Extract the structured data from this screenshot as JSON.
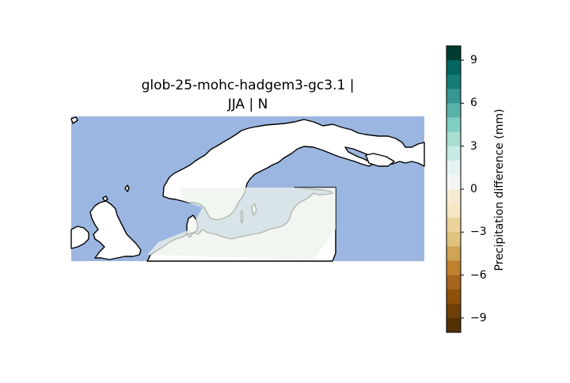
{
  "map": {
    "title_line1": "glob-25-mohc-hadgem3-gc3.1 |",
    "title_line2": "JJA | N",
    "region": "Northern Europe / Scandinavia",
    "ocean_color": "#9bb6e0",
    "land_color": "#ffffff",
    "coastline_color": "#000000",
    "field_overlay_color": "#eef3ec"
  },
  "colorbar": {
    "label": "Precipitation difference (mm)",
    "ticks": [
      "9",
      "6",
      "3",
      "0",
      "−3",
      "−6",
      "−9"
    ],
    "tick_values": [
      9,
      6,
      3,
      0,
      -3,
      -6,
      -9
    ],
    "range": [
      -10,
      10
    ],
    "colors": [
      "#003c30",
      "#01665e",
      "#137d74",
      "#35978f",
      "#5ab2a8",
      "#80cdc1",
      "#a8ddd2",
      "#c7eae5",
      "#e4f3f1",
      "#f5f5f5",
      "#f6ecd4",
      "#f6e8c3",
      "#ecd29b",
      "#dfc27d",
      "#cfa254",
      "#bf812d",
      "#a6661e",
      "#8c510a",
      "#6e3f08",
      "#543005"
    ]
  }
}
